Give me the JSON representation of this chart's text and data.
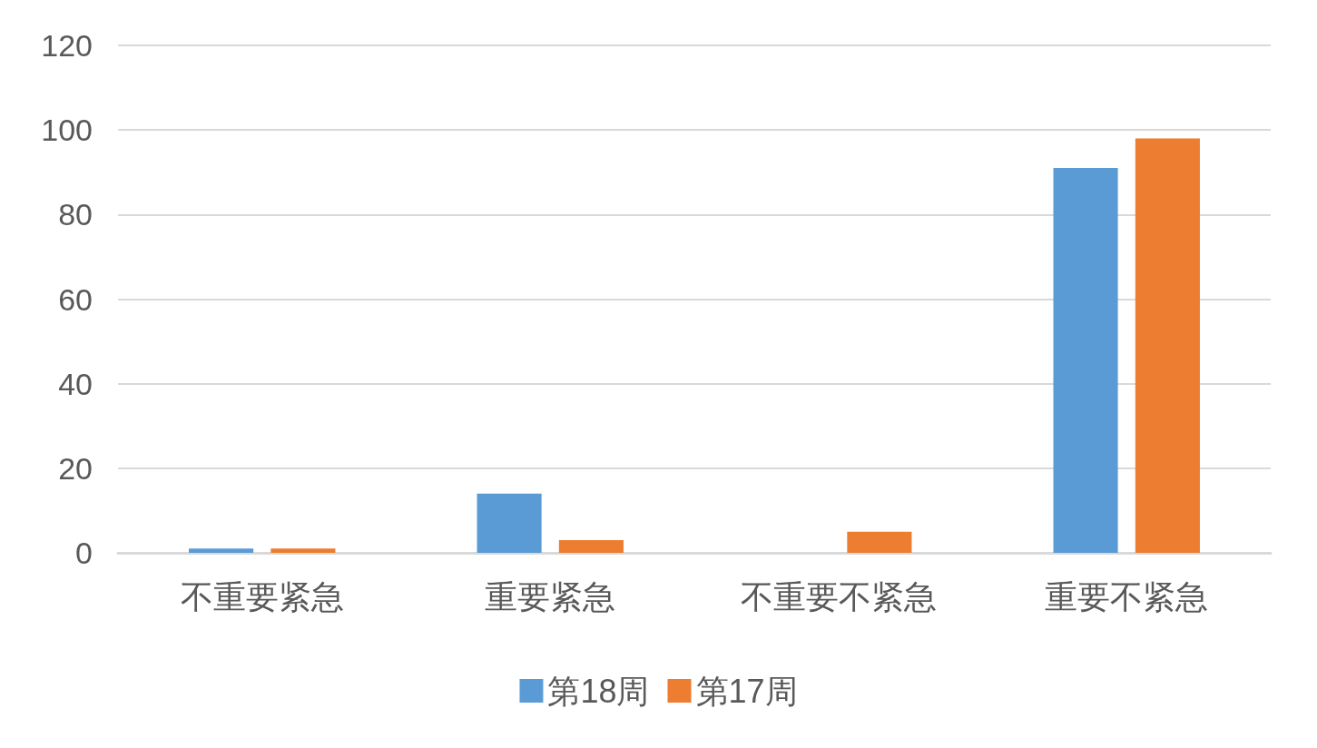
{
  "chart_data": {
    "type": "bar",
    "categories": [
      "不重要紧急",
      "重要紧急",
      "不重要不紧急",
      "重要不紧急"
    ],
    "series": [
      {
        "name": "第18周",
        "color": "#5b9bd5",
        "values": [
          1,
          14,
          0,
          91
        ]
      },
      {
        "name": "第17周",
        "color": "#ed7d31",
        "values": [
          1,
          3,
          5,
          98
        ]
      }
    ],
    "ylim": [
      0,
      120
    ],
    "yticks": [
      0,
      20,
      40,
      60,
      80,
      100,
      120
    ],
    "grid": "y",
    "legend": "bottom"
  }
}
